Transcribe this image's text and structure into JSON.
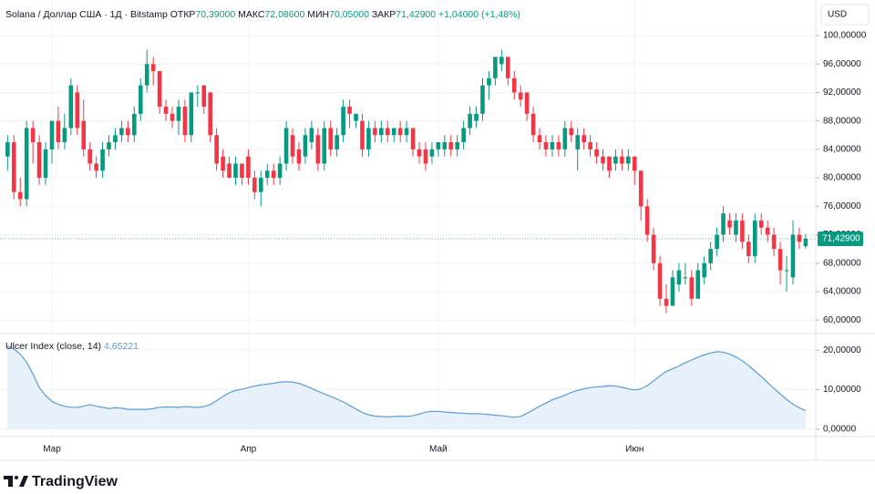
{
  "chart_data": [
    {
      "type": "candlestick",
      "title": "Solana / Доллар США · 1Д · Bitstamp",
      "ohlc_labels": [
        {
          "label": "ОТКР",
          "value": "70,39000"
        },
        {
          "label": "МАКС",
          "value": "72,08600"
        },
        {
          "label": "МИН",
          "value": "70,05000"
        },
        {
          "label": "ЗАКР",
          "value": "71,42900"
        }
      ],
      "change": "+1,04000 (+1,48%)",
      "currency": "USD",
      "last_label": "71,42900",
      "up_color": "#089981",
      "down_color": "#f23645",
      "x": [
        0,
        1,
        2,
        3,
        4,
        5,
        6,
        7,
        8,
        9,
        10,
        11,
        12,
        13,
        14,
        15,
        16,
        17,
        18,
        19,
        20,
        21,
        22,
        23,
        24,
        25,
        26,
        27,
        28,
        29,
        30,
        31,
        32,
        33,
        34,
        35,
        36,
        37,
        38,
        39,
        40,
        41,
        42,
        43,
        44,
        45,
        46,
        47,
        48,
        49,
        50,
        51,
        52,
        53,
        54,
        55,
        56,
        57,
        58,
        59,
        60,
        61,
        62,
        63,
        64,
        65,
        66,
        67,
        68,
        69,
        70,
        71,
        72,
        73,
        74,
        75,
        76,
        77,
        78,
        79,
        80,
        81,
        82,
        83,
        84,
        85,
        86,
        87,
        88,
        89,
        90,
        91,
        92,
        93,
        94,
        95,
        96,
        97,
        98,
        99,
        100,
        101,
        102,
        103,
        104,
        105,
        106,
        107,
        108,
        109,
        110,
        111,
        112,
        113,
        114,
        115,
        116,
        117,
        118,
        119,
        120,
        121,
        122,
        123,
        124,
        125,
        126
      ],
      "ohlc": [
        [
          83,
          86,
          81,
          85
        ],
        [
          85,
          86,
          77,
          78
        ],
        [
          78,
          80,
          76,
          77
        ],
        [
          77,
          88,
          76,
          87
        ],
        [
          87,
          88,
          82,
          85
        ],
        [
          85,
          86,
          79,
          80
        ],
        [
          80,
          85,
          79,
          84
        ],
        [
          84,
          88,
          82,
          88
        ],
        [
          88,
          90,
          84,
          85
        ],
        [
          85,
          89,
          84,
          87
        ],
        [
          87,
          94,
          86,
          93
        ],
        [
          92,
          93,
          86,
          87
        ],
        [
          88,
          91,
          83,
          84
        ],
        [
          84,
          85,
          81,
          82
        ],
        [
          82,
          83,
          80,
          81
        ],
        [
          81,
          85,
          80,
          84
        ],
        [
          84,
          86,
          83,
          85
        ],
        [
          85,
          87,
          84,
          86
        ],
        [
          86,
          88,
          85,
          87
        ],
        [
          87,
          88,
          85,
          86
        ],
        [
          86,
          90,
          85,
          89
        ],
        [
          89,
          94,
          88,
          93
        ],
        [
          93,
          98,
          92,
          96
        ],
        [
          96,
          97,
          93,
          95
        ],
        [
          95,
          95,
          89,
          90
        ],
        [
          90,
          91,
          88,
          89
        ],
        [
          89,
          90,
          87,
          88
        ],
        [
          88,
          91,
          86,
          90
        ],
        [
          90,
          91,
          85,
          86
        ],
        [
          86,
          92,
          85,
          92
        ],
        [
          92,
          93,
          90,
          92
        ],
        [
          93,
          93,
          89,
          90
        ],
        [
          92,
          92,
          85,
          86
        ],
        [
          86,
          87,
          81,
          82
        ],
        [
          83,
          84,
          80,
          81
        ],
        [
          82,
          83,
          80,
          80
        ],
        [
          80,
          83,
          79,
          82
        ],
        [
          82,
          82,
          79,
          80
        ],
        [
          83,
          84,
          79,
          80
        ],
        [
          80,
          81,
          77,
          78
        ],
        [
          78,
          81,
          76,
          80
        ],
        [
          80,
          82,
          79,
          81
        ],
        [
          81,
          82,
          79,
          80
        ],
        [
          80,
          83,
          79,
          82
        ],
        [
          82,
          88,
          81,
          87
        ],
        [
          86,
          87,
          82,
          83
        ],
        [
          84,
          85,
          81,
          82
        ],
        [
          83,
          87,
          82,
          86
        ],
        [
          85,
          88,
          84,
          87
        ],
        [
          86,
          87,
          81,
          82
        ],
        [
          82,
          88,
          81,
          87
        ],
        [
          87,
          88,
          83,
          84
        ],
        [
          84,
          87,
          83,
          86
        ],
        [
          86,
          91,
          85,
          90
        ],
        [
          90,
          91,
          87,
          89
        ],
        [
          88,
          89,
          87,
          89
        ],
        [
          88,
          89,
          83,
          84
        ],
        [
          84,
          88,
          83,
          87
        ],
        [
          87,
          88,
          85,
          86
        ],
        [
          86,
          88,
          85,
          87
        ],
        [
          87,
          88,
          85,
          86
        ],
        [
          86,
          87,
          85,
          87
        ],
        [
          87,
          88,
          85,
          86
        ],
        [
          86,
          88,
          85,
          87
        ],
        [
          87,
          87,
          83,
          84
        ],
        [
          84,
          85,
          82,
          83
        ],
        [
          84,
          85,
          81,
          82
        ],
        [
          83,
          85,
          82,
          84
        ],
        [
          84,
          85,
          83,
          85
        ],
        [
          84,
          86,
          83,
          85
        ],
        [
          85,
          86,
          83,
          84
        ],
        [
          84,
          86,
          83,
          85
        ],
        [
          85,
          88,
          84,
          87
        ],
        [
          87,
          90,
          86,
          89
        ],
        [
          88,
          90,
          87,
          89
        ],
        [
          89,
          94,
          88,
          93
        ],
        [
          93,
          95,
          91,
          94
        ],
        [
          94,
          97,
          93,
          97
        ],
        [
          96,
          98,
          95,
          97
        ],
        [
          97,
          97,
          93,
          94
        ],
        [
          94,
          95,
          91,
          92
        ],
        [
          92,
          93,
          90,
          91
        ],
        [
          92,
          92,
          88,
          89
        ],
        [
          89,
          90,
          85,
          86
        ],
        [
          86,
          87,
          84,
          85
        ],
        [
          85,
          86,
          83,
          84
        ],
        [
          84,
          86,
          83,
          85
        ],
        [
          85,
          86,
          83,
          84
        ],
        [
          84,
          88,
          83,
          87
        ],
        [
          87,
          88,
          85,
          86
        ],
        [
          84,
          87,
          81,
          86
        ],
        [
          86,
          87,
          84,
          85
        ],
        [
          85,
          86,
          83,
          84
        ],
        [
          84,
          85,
          82,
          83
        ],
        [
          83,
          84,
          81,
          82
        ],
        [
          83,
          83,
          80,
          81
        ],
        [
          82,
          84,
          81,
          83
        ],
        [
          83,
          84,
          81,
          82
        ],
        [
          82,
          84,
          81,
          83
        ],
        [
          83,
          83,
          79,
          81
        ],
        [
          81,
          81,
          74,
          76
        ],
        [
          76,
          77,
          71,
          72
        ],
        [
          72,
          73,
          67,
          68
        ],
        [
          68,
          69,
          62,
          63
        ],
        [
          63,
          65,
          61,
          62
        ],
        [
          62,
          67,
          62,
          66
        ],
        [
          65,
          68,
          64,
          67
        ],
        [
          66,
          68,
          65,
          66
        ],
        [
          66,
          67,
          62,
          63
        ],
        [
          63,
          68,
          63,
          67
        ],
        [
          66,
          69,
          65,
          68
        ],
        [
          68,
          71,
          67,
          70
        ],
        [
          70,
          73,
          69,
          72
        ],
        [
          72,
          76,
          71,
          75
        ],
        [
          74,
          75,
          72,
          73
        ],
        [
          72,
          75,
          71,
          74
        ],
        [
          74,
          75,
          70,
          71
        ],
        [
          71,
          72,
          68,
          69
        ],
        [
          69,
          75,
          68,
          74
        ],
        [
          74,
          75,
          72,
          73
        ],
        [
          73,
          74,
          71,
          72
        ],
        [
          72,
          73,
          69,
          70
        ],
        [
          70,
          71,
          65,
          67
        ],
        [
          67,
          69,
          64,
          67
        ],
        [
          66,
          74,
          65,
          72
        ],
        [
          72,
          73,
          70,
          71
        ],
        [
          70.39,
          72.086,
          70.05,
          71.429
        ]
      ],
      "xlim": [
        -1.2,
        127.6
      ],
      "xticks": [
        {
          "value": 7,
          "label": "Мар"
        },
        {
          "value": 38,
          "label": "Апр"
        },
        {
          "value": 68,
          "label": "Май"
        },
        {
          "value": 99,
          "label": "Июн"
        }
      ],
      "ylim": [
        58.1,
        105
      ],
      "yticks": [
        {
          "value": 60,
          "label": "60,00000"
        },
        {
          "value": 64,
          "label": "64,00000"
        },
        {
          "value": 68,
          "label": "68,00000"
        },
        {
          "value": 72,
          "label": "72,00000"
        },
        {
          "value": 76,
          "label": "76,00000"
        },
        {
          "value": 80,
          "label": "80,00000"
        },
        {
          "value": 84,
          "label": "84,00000"
        },
        {
          "value": 88,
          "label": "88,00000"
        },
        {
          "value": 92,
          "label": "92,00000"
        },
        {
          "value": 96,
          "label": "96,00000"
        },
        {
          "value": 100,
          "label": "100,00000"
        }
      ],
      "grid": true
    },
    {
      "type": "line",
      "title": "Ulcer Index (close, 14)",
      "value_label": "4,65221",
      "color": "#5b9bd5",
      "fill": "#e6f1fb",
      "values": [
        21,
        20.3,
        19,
        17,
        14,
        10.5,
        8.5,
        7,
        6.3,
        5.8,
        5.5,
        5.5,
        5.8,
        6.2,
        5.8,
        5.5,
        5.2,
        5.4,
        5.3,
        5.0,
        5.0,
        5.0,
        5.0,
        5.2,
        5.5,
        5.6,
        5.6,
        5.5,
        5.7,
        5.6,
        5.5,
        5.7,
        6.2,
        7.2,
        8.3,
        9.2,
        9.8,
        10.1,
        10.5,
        10.9,
        11.2,
        11.4,
        11.6,
        11.9,
        12.0,
        11.9,
        11.6,
        11.0,
        10.3,
        9.6,
        8.9,
        8.3,
        7.6,
        6.9,
        6.0,
        5.1,
        4.2,
        3.6,
        3.3,
        3.2,
        3.1,
        3.2,
        3.3,
        3.2,
        3.4,
        3.8,
        4.3,
        4.5,
        4.5,
        4.3,
        4.2,
        4.1,
        4.0,
        3.9,
        3.9,
        3.8,
        3.7,
        3.5,
        3.4,
        3.2,
        3.0,
        3.2,
        4.0,
        4.9,
        5.8,
        6.6,
        7.4,
        8.0,
        8.6,
        9.3,
        9.8,
        10.2,
        10.5,
        10.7,
        10.8,
        11.0,
        10.9,
        10.6,
        10.2,
        9.9,
        10.2,
        11.0,
        12.2,
        13.5,
        14.6,
        15.3,
        16.0,
        16.8,
        17.5,
        18.2,
        18.8,
        19.3,
        19.6,
        19.5,
        19.0,
        18.3,
        17.3,
        16.1,
        14.7,
        13.3,
        11.8,
        10.3,
        8.9,
        7.5,
        6.3,
        5.4,
        4.65221
      ],
      "ylim": [
        -1.9,
        24.2
      ],
      "yticks": [
        {
          "value": 0,
          "label": "0,00000"
        },
        {
          "value": 10,
          "label": "10,00000"
        },
        {
          "value": 20,
          "label": "20,00000"
        }
      ],
      "grid": true
    }
  ],
  "brand": "TradingView"
}
